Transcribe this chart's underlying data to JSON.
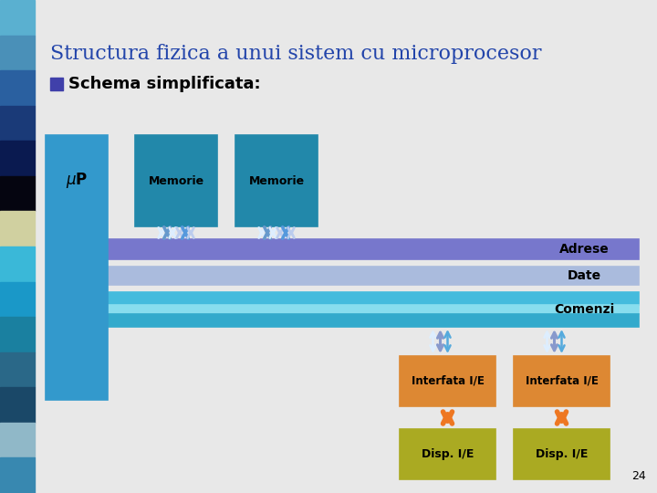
{
  "title": "Structura fizica a unui sistem cu microprocesor",
  "subtitle": "Schema simplificata:",
  "title_color": "#2244aa",
  "subtitle_color": "#000000",
  "subtitle_bullet_color": "#4040aa",
  "bg_color": "#e8e8e8",
  "page_num": "24",
  "sidebar_colors": [
    "#5ab0d0",
    "#4a90b8",
    "#2a60a0",
    "#1a3a78",
    "#0a1a50",
    "#050510",
    "#d0d0a0",
    "#3ab8d8",
    "#1a98c8",
    "#1a80a0",
    "#2a6888",
    "#1a4868",
    "#90b8c8",
    "#3888b0"
  ],
  "mp_color": "#3399cc",
  "mem_color": "#2288aa",
  "bus_adrese_color": "#7777cc",
  "bus_date_color": "#aabbdd",
  "bus_comenzi_top_color": "#44bbdd",
  "bus_comenzi_mid_color": "#88ddee",
  "bus_comenzi_bot_color": "#33aacc",
  "interfata_color": "#dd8833",
  "disp_color": "#aaaa22",
  "arrow_blue": "#4488cc",
  "arrow_white": "#ddddff",
  "arrow_purple": "#8888cc",
  "arrow_orange": "#ee7722"
}
